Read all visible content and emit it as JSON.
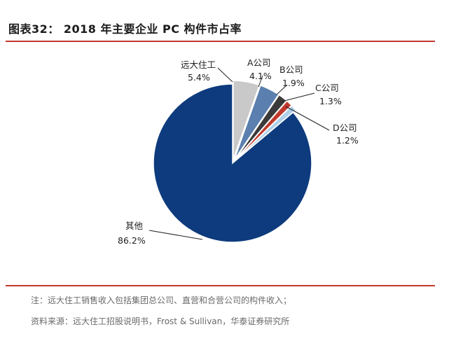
{
  "title": "图表32：  2018 年主要企业 PC 构件市占率",
  "notes": {
    "note": "注：远大住工销售收入包括集团总公司、直营和合营公司的构件收入；",
    "source": "资料来源：远大住工招股说明书，Frost & Sullivan，华泰证券研究所"
  },
  "chart_data": {
    "type": "pie",
    "title": "2018 年主要企业 PC 构件市占率",
    "slices": [
      {
        "name": "远大住工",
        "value": 5.4,
        "label": "5.4%",
        "color": "#c9c9c9"
      },
      {
        "name": "A公司",
        "value": 4.1,
        "label": "4.1%",
        "color": "#5b7fae"
      },
      {
        "name": "B公司",
        "value": 1.9,
        "label": "1.9%",
        "color": "#3a3a3a"
      },
      {
        "name": "C公司",
        "value": 1.3,
        "label": "1.3%",
        "color": "#c0392b"
      },
      {
        "name": "D公司",
        "value": 1.2,
        "label": "1.2%",
        "color": "#aed0e8"
      },
      {
        "name": "其他",
        "value": 86.2,
        "label": "86.2%",
        "color": "#0d3b7d"
      }
    ]
  }
}
